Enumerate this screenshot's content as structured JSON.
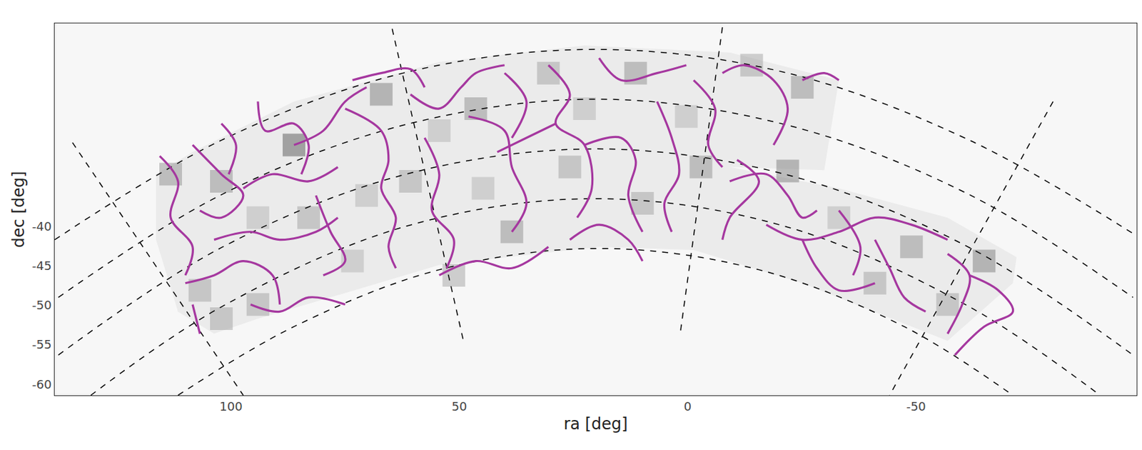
{
  "chart_data": {
    "type": "sky_map",
    "xlabel": "ra [deg]",
    "ylabel": "dec [deg]",
    "xlim": [
      138.6,
      -98.3
    ],
    "ylim": [
      -61.4,
      -14.3
    ],
    "xticks": [
      100,
      50,
      0,
      -50
    ],
    "yticks": [
      -40,
      -45,
      -50,
      -55,
      -60
    ],
    "grid": false,
    "footprint": {
      "color": "#ebebeb",
      "ra": [
        116.4,
        108.4,
        86.2,
        54.4,
        22.6,
        -9.2,
        -33.1,
        -29.9,
        -9.2,
        -33.1,
        -56.9,
        -72.0,
        -71.2,
        -56.9,
        -25.1,
        -1.3,
        19.4,
        54.4,
        78.2,
        94.1,
        103.7,
        111.6,
        116.4
      ],
      "dec": [
        -33.4,
        -30.6,
        -24.2,
        -19.2,
        -17.1,
        -18.0,
        -21.5,
        -32.9,
        -32.5,
        -35.2,
        -38.9,
        -43.9,
        -47.2,
        -54.5,
        -47.2,
        -43.0,
        -42.6,
        -44.9,
        -49.0,
        -51.7,
        -53.6,
        -50.8,
        -41.7
      ]
    },
    "density": {
      "ra": [
        86.2,
        102.1,
        106.8,
        67.1,
        46.4,
        30.5,
        -25.1,
        -49.0,
        -64.9,
        -2.9,
        -21.9,
        11.4,
        60.7,
        83.0,
        38.5,
        9.9,
        -41.0,
        113.2,
        94.1,
        102.1,
        54.4,
        22.6,
        73.4,
        -33.1,
        -56.9,
        0.3,
        44.8,
        25.8,
        94.1,
        51.2,
        -14.0,
        70.3
      ],
      "dec": [
        -29.7,
        -34.3,
        -48.1,
        -23.3,
        -25.1,
        -20.6,
        -22.4,
        -42.6,
        -44.4,
        -32.5,
        -33.0,
        -20.6,
        -34.3,
        -38.9,
        -40.7,
        -37.1,
        -47.2,
        -33.4,
        -38.9,
        -51.7,
        -27.9,
        -25.1,
        -44.4,
        -38.9,
        -49.9,
        -26.1,
        -35.2,
        -32.5,
        -49.9,
        -46.2,
        -19.6,
        -36.1
      ],
      "values": [
        0.9,
        0.6,
        0.5,
        0.7,
        0.6,
        0.5,
        0.6,
        0.6,
        0.7,
        0.6,
        0.7,
        0.6,
        0.5,
        0.5,
        0.6,
        0.5,
        0.5,
        0.6,
        0.4,
        0.5,
        0.4,
        0.4,
        0.4,
        0.4,
        0.5,
        0.4,
        0.4,
        0.5,
        0.5,
        0.5,
        0.5,
        0.4
      ]
    },
    "graticule": {
      "color": "#000000",
      "line_style": "dash",
      "lines": [
        {
          "ra": [
            138.6,
            102.1,
            62.3,
            20.2,
            -21.9,
            -61.7,
            -98.3
          ],
          "dec": [
            -41.7,
            -29.1,
            -20.6,
            -17.6,
            -20.6,
            -29.1,
            -41.2
          ]
        },
        {
          "ra": [
            137.8,
            102.1,
            62.3,
            20.2,
            -21.9,
            -61.7,
            -97.5
          ],
          "dec": [
            -49.0,
            -36.0,
            -27.2,
            -23.9,
            -27.2,
            -36.0,
            -49.0
          ]
        },
        {
          "ra": [
            137.8,
            102.1,
            62.3,
            20.2,
            -21.9,
            -61.7,
            -97.5
          ],
          "dec": [
            -56.3,
            -42.7,
            -33.5,
            -30.2,
            -33.5,
            -42.7,
            -56.3
          ]
        },
        {
          "ra": [
            130.7,
            102.1,
            62.3,
            20.2,
            -21.9,
            -61.7,
            -90.3
          ],
          "dec": [
            -61.4,
            -50.2,
            -40.1,
            -36.5,
            -40.1,
            -50.2,
            -61.4
          ]
        },
        {
          "ra": [
            111.6,
            86.2,
            54.4,
            19.4,
            -15.6,
            -47.4,
            -71.2
          ],
          "dec": [
            -61.4,
            -52.7,
            -45.5,
            -42.8,
            -45.5,
            -52.7,
            -61.4
          ]
        },
        {
          "ra": [
            134.7,
            97.3
          ],
          "dec": [
            -29.4,
            -61.4
          ]
        },
        {
          "ra": [
            64.7,
            49.1
          ],
          "dec": [
            -15.0,
            -54.5
          ]
        },
        {
          "ra": [
            -7.6,
            1.6
          ],
          "dec": [
            -14.8,
            -53.4
          ]
        },
        {
          "ra": [
            -80.0,
            -44.2
          ],
          "dec": [
            -24.2,
            -61.4
          ]
        }
      ]
    },
    "filaments": {
      "color": "#a5379f",
      "segments": [
        [
          [
            115.6,
            -31.1
          ],
          [
            111.6,
            -34.3
          ],
          [
            113.2,
            -38.9
          ],
          [
            108.4,
            -42.6
          ],
          [
            110.0,
            -46.2
          ]
        ],
        [
          [
            108.4,
            -29.7
          ],
          [
            102.1,
            -33.4
          ],
          [
            97.3,
            -36.1
          ],
          [
            102.1,
            -38.9
          ],
          [
            106.8,
            -38.0
          ]
        ],
        [
          [
            102.1,
            -27.0
          ],
          [
            98.9,
            -29.7
          ],
          [
            100.5,
            -33.4
          ]
        ],
        [
          [
            94.1,
            -24.2
          ],
          [
            92.5,
            -27.9
          ],
          [
            86.2,
            -27.0
          ],
          [
            83.0,
            -29.7
          ],
          [
            84.6,
            -33.4
          ]
        ],
        [
          [
            97.3,
            -35.2
          ],
          [
            90.9,
            -33.4
          ],
          [
            83.0,
            -34.3
          ],
          [
            76.6,
            -32.5
          ]
        ],
        [
          [
            110.0,
            -47.2
          ],
          [
            103.7,
            -46.2
          ],
          [
            97.3,
            -44.4
          ],
          [
            90.9,
            -46.2
          ],
          [
            89.3,
            -49.9
          ]
        ],
        [
          [
            108.4,
            -49.9
          ],
          [
            106.8,
            -53.6
          ]
        ],
        [
          [
            103.7,
            -41.7
          ],
          [
            95.7,
            -40.7
          ],
          [
            89.3,
            -41.7
          ],
          [
            81.4,
            -40.7
          ],
          [
            76.6,
            -38.9
          ]
        ],
        [
          [
            86.2,
            -29.7
          ],
          [
            79.8,
            -27.9
          ],
          [
            75.0,
            -24.2
          ],
          [
            70.3,
            -22.4
          ]
        ],
        [
          [
            81.4,
            -36.1
          ],
          [
            78.2,
            -40.7
          ],
          [
            75.0,
            -44.4
          ],
          [
            79.8,
            -46.2
          ]
        ],
        [
          [
            75.0,
            -25.1
          ],
          [
            67.1,
            -27.9
          ],
          [
            65.5,
            -31.6
          ],
          [
            67.1,
            -35.2
          ],
          [
            63.9,
            -38.9
          ],
          [
            65.5,
            -42.6
          ],
          [
            63.9,
            -45.3
          ]
        ],
        [
          [
            73.4,
            -21.5
          ],
          [
            67.1,
            -20.6
          ],
          [
            60.7,
            -20.1
          ],
          [
            57.6,
            -22.4
          ]
        ],
        [
          [
            60.7,
            -23.3
          ],
          [
            54.4,
            -25.1
          ],
          [
            49.6,
            -22.4
          ],
          [
            46.4,
            -20.6
          ],
          [
            40.1,
            -19.6
          ]
        ],
        [
          [
            57.6,
            -28.8
          ],
          [
            54.4,
            -33.4
          ],
          [
            56.0,
            -38.0
          ],
          [
            51.2,
            -41.7
          ],
          [
            52.8,
            -45.3
          ]
        ],
        [
          [
            48.0,
            -26.1
          ],
          [
            40.1,
            -27.9
          ],
          [
            38.5,
            -32.5
          ],
          [
            35.3,
            -37.1
          ],
          [
            38.5,
            -40.7
          ]
        ],
        [
          [
            40.1,
            -20.6
          ],
          [
            35.3,
            -24.2
          ],
          [
            38.5,
            -28.8
          ]
        ],
        [
          [
            30.5,
            -19.6
          ],
          [
            25.8,
            -23.3
          ],
          [
            28.9,
            -27.0
          ],
          [
            22.6,
            -29.7
          ],
          [
            21.0,
            -35.2
          ],
          [
            24.2,
            -38.9
          ]
        ],
        [
          [
            28.9,
            -27.0
          ],
          [
            35.3,
            -28.8
          ],
          [
            41.7,
            -30.6
          ]
        ],
        [
          [
            22.6,
            -29.7
          ],
          [
            14.6,
            -28.8
          ],
          [
            11.4,
            -31.6
          ],
          [
            13.0,
            -36.1
          ],
          [
            9.9,
            -40.7
          ]
        ],
        [
          [
            19.4,
            -18.7
          ],
          [
            14.6,
            -21.5
          ],
          [
            6.7,
            -20.6
          ],
          [
            0.3,
            -19.6
          ]
        ],
        [
          [
            6.7,
            -24.2
          ],
          [
            3.5,
            -28.8
          ],
          [
            1.9,
            -33.4
          ],
          [
            5.1,
            -37.1
          ],
          [
            3.5,
            -40.7
          ]
        ],
        [
          [
            -1.3,
            -21.5
          ],
          [
            -6.0,
            -25.1
          ],
          [
            -4.5,
            -29.7
          ],
          [
            -7.6,
            -32.5
          ]
        ],
        [
          [
            -7.6,
            -20.6
          ],
          [
            -12.4,
            -19.6
          ],
          [
            -18.8,
            -21.5
          ],
          [
            -21.9,
            -25.1
          ],
          [
            -18.8,
            -29.7
          ]
        ],
        [
          [
            -9.2,
            -34.3
          ],
          [
            -17.2,
            -33.4
          ],
          [
            -21.9,
            -36.1
          ],
          [
            -25.1,
            -38.9
          ],
          [
            -28.3,
            -38.0
          ]
        ],
        [
          [
            -17.2,
            -39.8
          ],
          [
            -25.1,
            -41.7
          ],
          [
            -33.1,
            -40.7
          ],
          [
            -41.0,
            -38.9
          ],
          [
            -49.0,
            -39.8
          ],
          [
            -56.9,
            -41.7
          ]
        ],
        [
          [
            -25.1,
            -41.7
          ],
          [
            -28.3,
            -45.3
          ],
          [
            -33.1,
            -48.1
          ],
          [
            -41.0,
            -47.2
          ]
        ],
        [
          [
            -41.0,
            -41.7
          ],
          [
            -44.2,
            -45.3
          ],
          [
            -47.4,
            -49.0
          ],
          [
            -52.1,
            -50.8
          ]
        ],
        [
          [
            -56.9,
            -43.5
          ],
          [
            -61.7,
            -46.2
          ],
          [
            -60.1,
            -49.9
          ],
          [
            -56.9,
            -53.6
          ]
        ],
        [
          [
            -61.7,
            -46.2
          ],
          [
            -68.0,
            -48.1
          ],
          [
            -71.2,
            -50.8
          ],
          [
            -64.9,
            -52.7
          ],
          [
            -58.5,
            -56.3
          ]
        ],
        [
          [
            -33.1,
            -38.0
          ],
          [
            -37.8,
            -42.6
          ],
          [
            -36.2,
            -46.2
          ]
        ],
        [
          [
            -10.8,
            -31.6
          ],
          [
            -15.6,
            -34.3
          ],
          [
            -9.2,
            -38.9
          ],
          [
            -7.6,
            -41.7
          ]
        ],
        [
          [
            95.7,
            -49.9
          ],
          [
            89.3,
            -50.8
          ],
          [
            83.0,
            -49.0
          ],
          [
            75.0,
            -49.9
          ]
        ],
        [
          [
            54.4,
            -46.2
          ],
          [
            46.4,
            -44.4
          ],
          [
            38.5,
            -45.3
          ],
          [
            30.5,
            -42.6
          ]
        ],
        [
          [
            25.8,
            -41.7
          ],
          [
            19.4,
            -39.8
          ],
          [
            13.0,
            -41.7
          ],
          [
            9.9,
            -44.4
          ]
        ],
        [
          [
            -25.1,
            -21.5
          ],
          [
            -29.9,
            -20.6
          ],
          [
            -33.1,
            -21.5
          ]
        ]
      ]
    }
  }
}
